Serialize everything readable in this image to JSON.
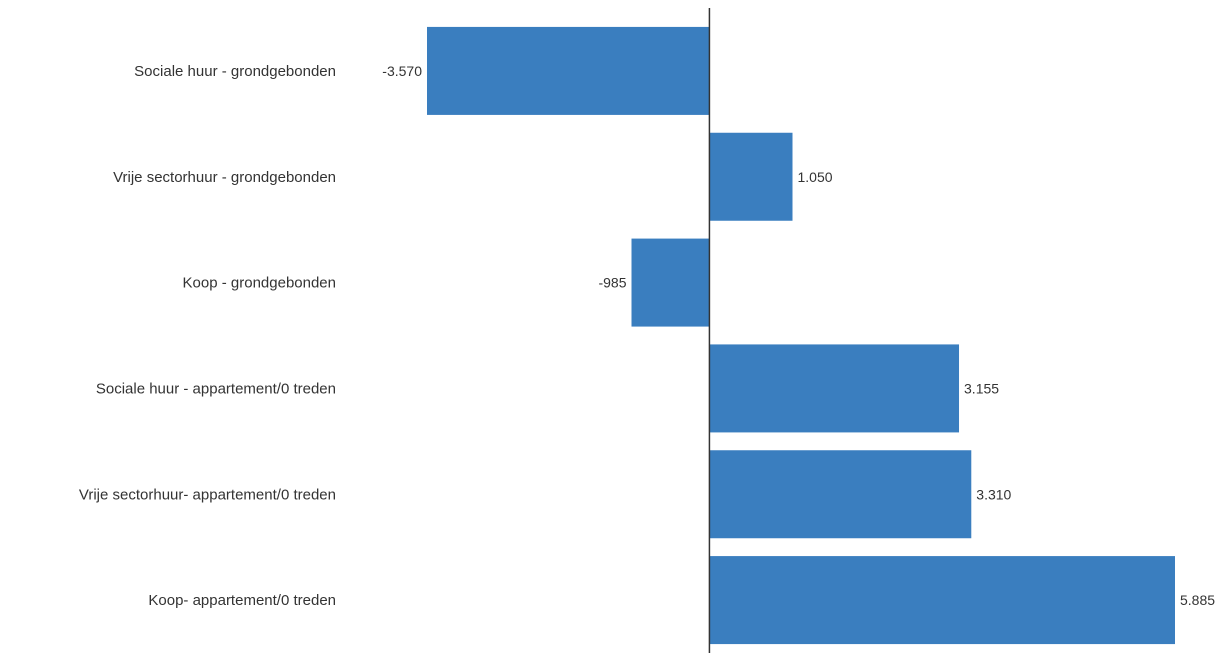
{
  "chart_data": {
    "type": "bar",
    "orientation": "horizontal",
    "categories": [
      "Sociale huur - grondgebonden",
      "Vrije sectorhuur - grondgebonden",
      "Koop - grondgebonden",
      "Sociale huur - appartement/0 treden",
      "Vrije sectorhuur- appartement/0 treden",
      "Koop- appartement/0 treden"
    ],
    "values": [
      -3570,
      1050,
      -985,
      3155,
      3310,
      5885
    ],
    "data_labels": [
      "-3.570",
      "1.050",
      "-985",
      "3.155",
      "3.310",
      "5.885"
    ],
    "bar_color": "#3a7ebf",
    "axis_color": "#333333",
    "xlim": [
      -3570,
      5885
    ],
    "grid": false,
    "legend": "none",
    "title": "",
    "xlabel": "",
    "ylabel": ""
  }
}
